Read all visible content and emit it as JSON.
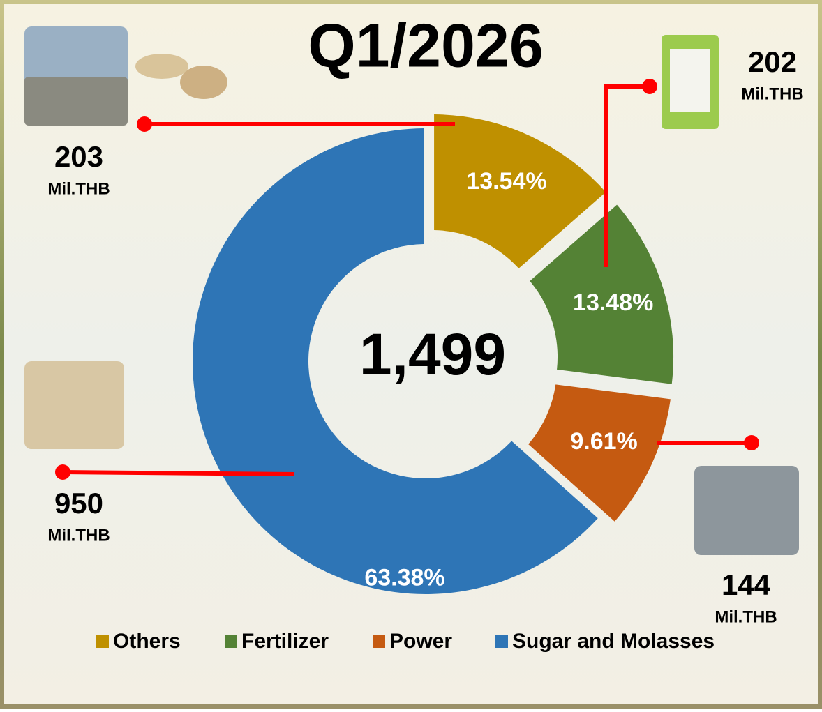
{
  "chart_data": {
    "type": "pie",
    "title": "Q1/2026",
    "total": {
      "value": 1499,
      "label": "1,499"
    },
    "categories": [
      "Others",
      "Fertilizer",
      "Power",
      "Sugar and Molasses"
    ],
    "values": [
      13.54,
      13.48,
      9.61,
      63.38
    ],
    "value_labels": [
      "13.54%",
      "13.48%",
      "9.61%",
      "63.38%"
    ],
    "colors": [
      "#bf9000",
      "#548235",
      "#c55a11",
      "#2e75b6"
    ],
    "amounts": [
      203,
      202,
      144,
      950
    ],
    "amount_unit": "Mil.THB",
    "donut": true,
    "legend": "bottom"
  }
}
